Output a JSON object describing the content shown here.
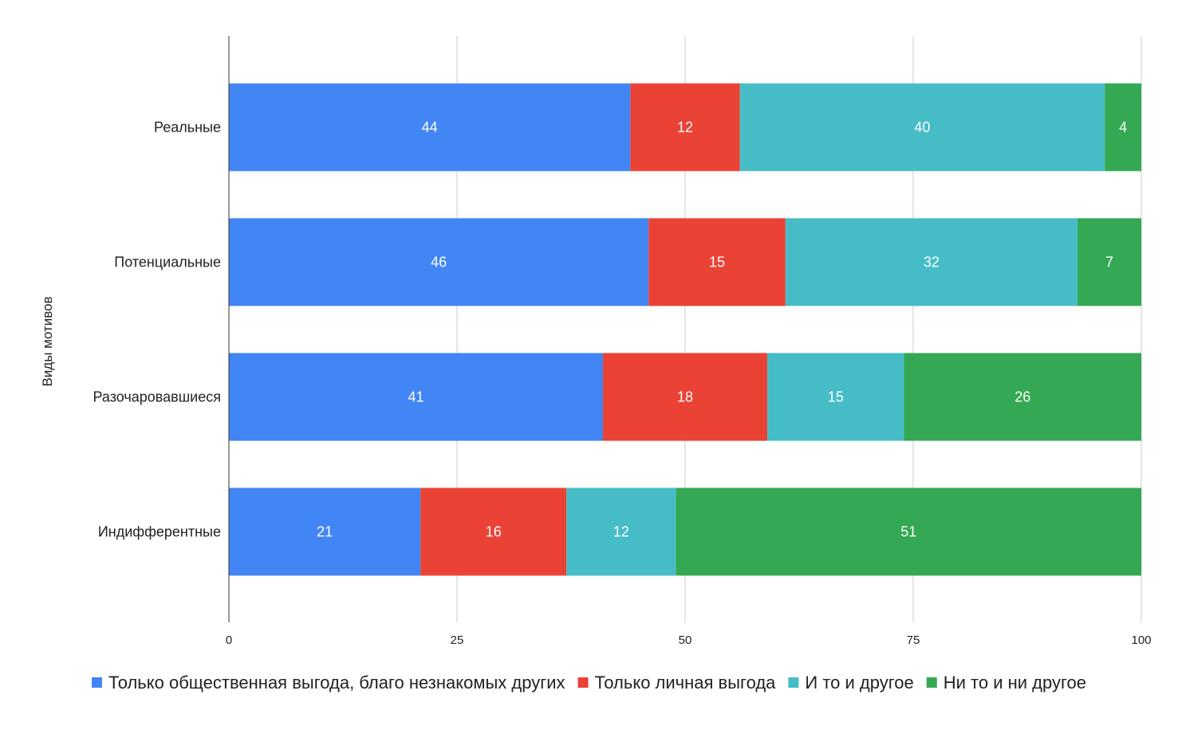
{
  "chart_data": {
    "type": "bar",
    "orientation": "horizontal",
    "stacked": true,
    "title": "",
    "xlabel": "",
    "ylabel": "Виды мотивов",
    "xlim": [
      0,
      100
    ],
    "x_ticks": [
      0,
      25,
      50,
      75,
      100
    ],
    "grid": true,
    "legend_position": "bottom",
    "categories": [
      "Реальные",
      "Потенциальные",
      "Разочаровавшиеся",
      "Индифферентные"
    ],
    "series": [
      {
        "name": "Только общественная выгода, благо незнакомых других",
        "color": "#4285f4",
        "values": [
          44,
          46,
          41,
          21
        ]
      },
      {
        "name": "Только личная выгода",
        "color": "#ea4335",
        "values": [
          12,
          15,
          18,
          16
        ]
      },
      {
        "name": "И то и другое",
        "color": "#46bdc6",
        "values": [
          40,
          32,
          15,
          12
        ]
      },
      {
        "name": "Ни то и ни другое",
        "color": "#34a853",
        "values": [
          4,
          7,
          26,
          51
        ]
      }
    ]
  }
}
